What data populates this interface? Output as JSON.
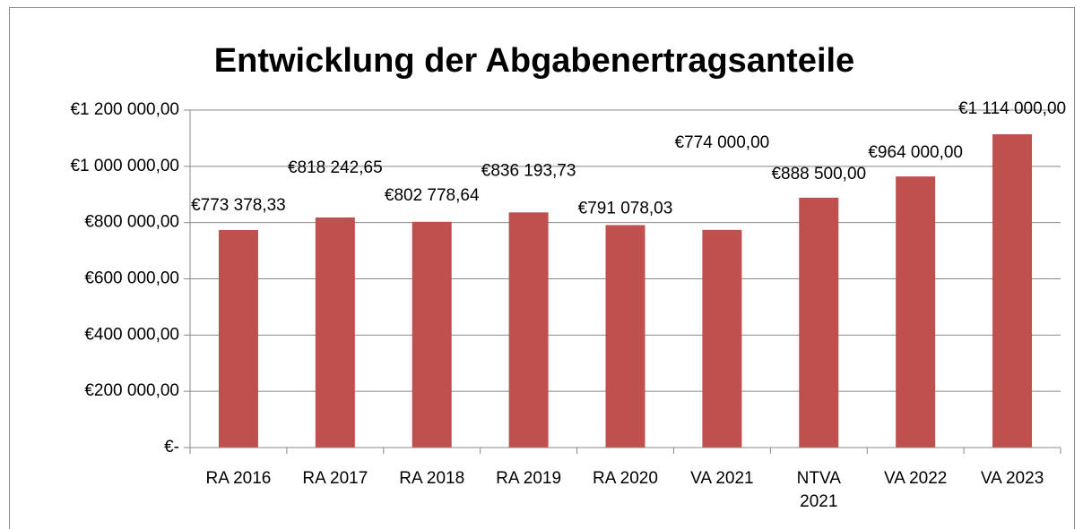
{
  "chart_data": {
    "type": "bar",
    "title": "Entwicklung der Abgabenertragsanteile",
    "categories": [
      "RA 2016",
      "RA 2017",
      "RA 2018",
      "RA 2019",
      "RA 2020",
      "VA 2021",
      "NTVA 2021",
      "VA 2022",
      "VA 2023"
    ],
    "values": [
      773378.33,
      818242.65,
      802778.64,
      836193.73,
      791078.03,
      774000,
      888500,
      964000,
      1114000
    ],
    "value_labels": [
      "€773 378,33",
      "€818 242,65",
      "€802 778,64",
      "€836 193,73",
      "€791 078,03",
      "€774 000,00",
      "€888 500,00",
      "€964 000,00",
      "€1 114 000,00"
    ],
    "color": "#c0504d",
    "ylim": [
      0,
      1200000
    ],
    "yticks": [
      {
        "value": 0,
        "label": "€-"
      },
      {
        "value": 200000,
        "label": "€200 000,00"
      },
      {
        "value": 400000,
        "label": "€400 000,00"
      },
      {
        "value": 600000,
        "label": "€600 000,00"
      },
      {
        "value": 800000,
        "label": "€800 000,00"
      },
      {
        "value": 1000000,
        "label": "€1 000 000,00"
      },
      {
        "value": 1200000,
        "label": "€1 200 000,00"
      }
    ],
    "grid": true
  }
}
